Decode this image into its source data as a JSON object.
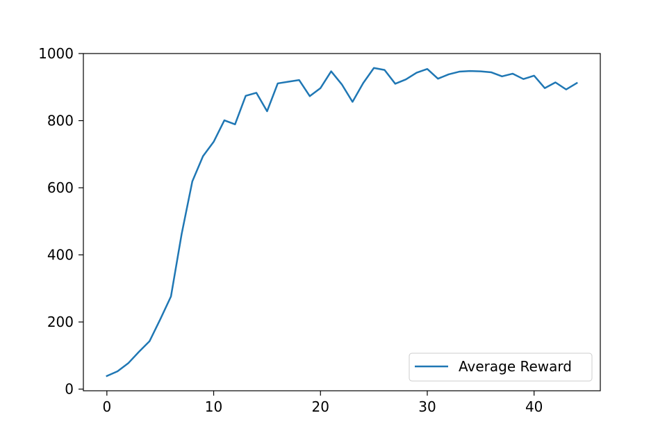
{
  "chart_data": {
    "type": "line",
    "title": "",
    "xlabel": "",
    "ylabel": "",
    "xlim": [
      -2.2,
      46.2
    ],
    "ylim": [
      -5,
      1000
    ],
    "xticks": [
      0,
      10,
      20,
      30,
      40
    ],
    "yticks": [
      0,
      200,
      400,
      600,
      800,
      1000
    ],
    "grid": false,
    "legend_position": "lower-right",
    "series": [
      {
        "name": "Average Reward",
        "color": "#1f77b4",
        "x": [
          0,
          1,
          2,
          3,
          4,
          5,
          6,
          7,
          8,
          9,
          10,
          11,
          12,
          13,
          14,
          15,
          16,
          17,
          18,
          19,
          20,
          21,
          22,
          23,
          24,
          25,
          26,
          27,
          28,
          29,
          30,
          31,
          32,
          33,
          34,
          35,
          36,
          37,
          38,
          39,
          40,
          41,
          42,
          43,
          44
        ],
        "y": [
          39,
          53,
          77,
          111,
          143,
          208,
          276,
          462,
          619,
          694,
          737,
          801,
          789,
          874,
          883,
          828,
          911,
          916,
          921,
          873,
          897,
          947,
          908,
          856,
          912,
          957,
          951,
          910,
          923,
          943,
          954,
          925,
          938,
          946,
          948,
          947,
          944,
          932,
          940,
          924,
          934,
          897,
          914,
          893,
          912
        ]
      }
    ]
  }
}
